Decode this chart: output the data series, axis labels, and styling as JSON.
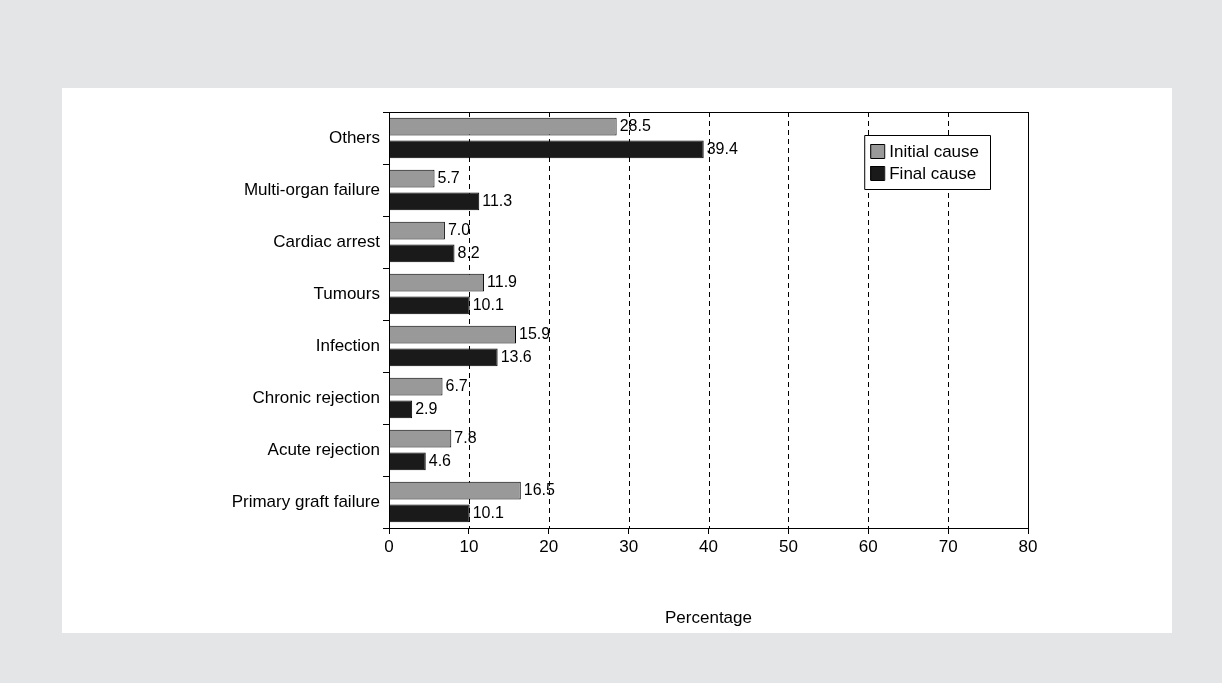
{
  "chart_data": {
    "type": "bar",
    "orientation": "horizontal",
    "categories": [
      "Others",
      "Multi-organ failure",
      "Cardiac arrest",
      "Tumours",
      "Infection",
      "Chronic rejection",
      "Acute rejection",
      "Primary graft failure"
    ],
    "series": [
      {
        "name": "Initial cause",
        "color": "#999999",
        "values": [
          28.5,
          5.7,
          7.0,
          11.9,
          15.9,
          6.7,
          7.8,
          16.5
        ],
        "value_labels": [
          "28.5",
          "5.7",
          "7.0",
          "11.9",
          "15.9",
          "6.7",
          "7.8",
          "16.5"
        ]
      },
      {
        "name": "Final cause",
        "color": "#1a1a1a",
        "values": [
          39.4,
          11.3,
          8.2,
          10.1,
          13.6,
          2.9,
          4.6,
          10.1
        ],
        "value_labels": [
          "39.4",
          "11.3",
          "8.2",
          "10.1",
          "13.6",
          "2.9",
          "4.6",
          "10.1"
        ]
      }
    ],
    "xlabel": "Percentage",
    "xlim": [
      0,
      80
    ],
    "xticks": [
      0,
      10,
      20,
      30,
      40,
      50,
      60,
      70,
      80
    ],
    "grid": "x",
    "legend": "top right"
  }
}
